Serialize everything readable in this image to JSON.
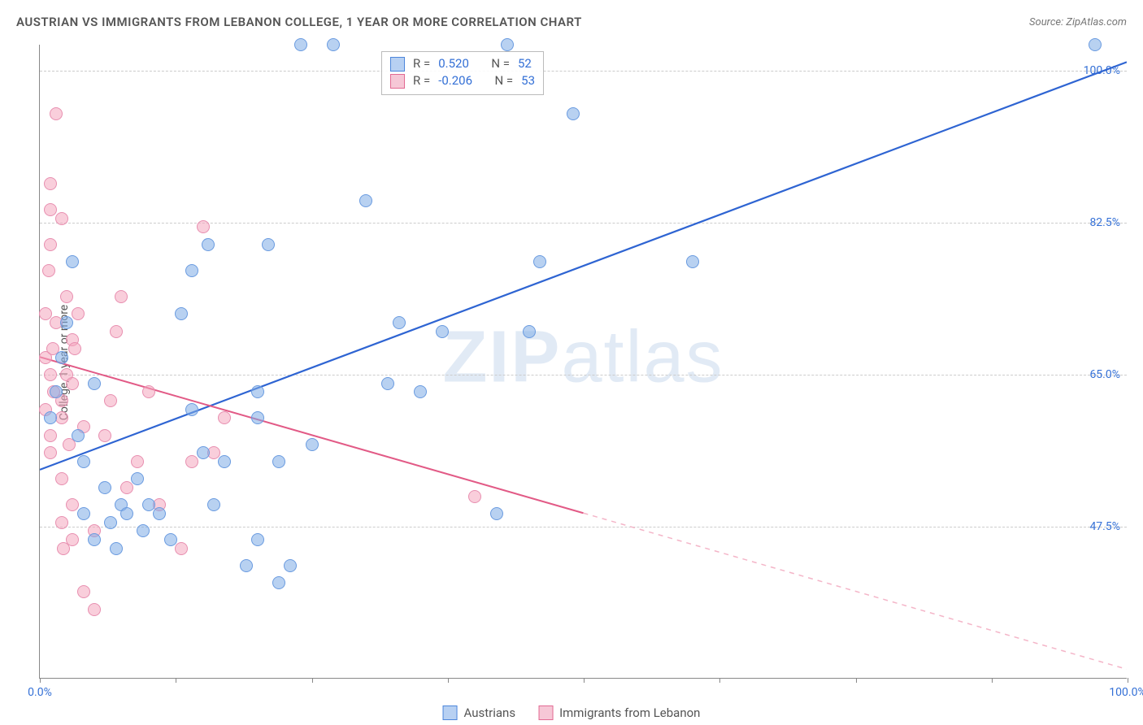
{
  "title": "AUSTRIAN VS IMMIGRANTS FROM LEBANON COLLEGE, 1 YEAR OR MORE CORRELATION CHART",
  "source": "Source: ZipAtlas.com",
  "y_axis_label": "College, 1 year or more",
  "watermark": "ZIPatlas",
  "chart": {
    "type": "scatter",
    "xlim": [
      0,
      100
    ],
    "ylim": [
      30,
      103
    ],
    "y_ticks": [
      {
        "v": 47.5,
        "label": "47.5%"
      },
      {
        "v": 65.0,
        "label": "65.0%"
      },
      {
        "v": 82.5,
        "label": "82.5%"
      },
      {
        "v": 100.0,
        "label": "100.0%"
      }
    ],
    "x_tick_positions": [
      0,
      12.5,
      25,
      37.5,
      50,
      62.5,
      75,
      87.5,
      100
    ],
    "x_tick_labels": [
      {
        "v": 0,
        "label": "0.0%"
      },
      {
        "v": 100,
        "label": "100.0%"
      }
    ],
    "background_color": "#ffffff",
    "grid_color": "#cccccc"
  },
  "series": {
    "austrians": {
      "label": "Austrians",
      "color_fill": "rgba(126,171,229,0.55)",
      "color_stroke": "#6a9be0",
      "swatch_fill": "#b7d0f2",
      "swatch_stroke": "#4d86db",
      "r_value": "0.520",
      "n_value": "52",
      "n_color": "#3470d6",
      "trend": {
        "x1": 0,
        "y1": 54,
        "x2": 100,
        "y2": 101,
        "color": "#2e64d2",
        "width": 2.2,
        "dash": "none"
      },
      "points": [
        [
          1,
          60
        ],
        [
          1.5,
          63
        ],
        [
          2,
          67
        ],
        [
          2.5,
          71
        ],
        [
          3,
          78
        ],
        [
          3.5,
          58
        ],
        [
          4,
          55
        ],
        [
          4,
          49
        ],
        [
          5,
          46
        ],
        [
          5,
          64
        ],
        [
          6,
          52
        ],
        [
          6.5,
          48
        ],
        [
          7,
          45
        ],
        [
          7.5,
          50
        ],
        [
          8,
          49
        ],
        [
          9,
          53
        ],
        [
          9.5,
          47
        ],
        [
          10,
          50
        ],
        [
          11,
          49
        ],
        [
          12,
          46
        ],
        [
          13,
          72
        ],
        [
          14,
          61
        ],
        [
          14,
          77
        ],
        [
          15,
          56
        ],
        [
          15.5,
          80
        ],
        [
          16,
          50
        ],
        [
          17,
          55
        ],
        [
          19,
          43
        ],
        [
          20,
          46
        ],
        [
          20,
          60
        ],
        [
          20,
          63
        ],
        [
          21,
          80
        ],
        [
          22,
          55
        ],
        [
          22,
          41
        ],
        [
          23,
          43
        ],
        [
          24,
          103
        ],
        [
          25,
          57
        ],
        [
          27,
          103
        ],
        [
          30,
          85
        ],
        [
          32,
          64
        ],
        [
          33,
          71
        ],
        [
          35,
          63
        ],
        [
          37,
          70
        ],
        [
          42,
          49
        ],
        [
          43,
          103
        ],
        [
          45,
          70
        ],
        [
          46,
          78
        ],
        [
          49,
          95
        ],
        [
          60,
          78
        ],
        [
          97,
          103
        ]
      ]
    },
    "lebanon": {
      "label": "Immigrants from Lebanon",
      "color_fill": "rgba(244,165,190,0.55)",
      "color_stroke": "#e88fb0",
      "swatch_fill": "#f6c7d6",
      "swatch_stroke": "#e26a93",
      "r_value": "-0.206",
      "n_value": "53",
      "n_color": "#3470d6",
      "trend_solid": {
        "x1": 0,
        "y1": 67,
        "x2": 50,
        "y2": 49,
        "color": "#e25a86",
        "width": 2
      },
      "trend_dash": {
        "x1": 50,
        "y1": 49,
        "x2": 100,
        "y2": 31,
        "color": "#f4b5c8",
        "width": 1.5,
        "dash": "6,6"
      },
      "points": [
        [
          0.5,
          61
        ],
        [
          0.5,
          67
        ],
        [
          0.5,
          72
        ],
        [
          0.8,
          77
        ],
        [
          1,
          80
        ],
        [
          1,
          84
        ],
        [
          1,
          87
        ],
        [
          1,
          65
        ],
        [
          1,
          58
        ],
        [
          1,
          56
        ],
        [
          1.2,
          68
        ],
        [
          1.3,
          63
        ],
        [
          1.5,
          71
        ],
        [
          1.5,
          95
        ],
        [
          2,
          83
        ],
        [
          2,
          62
        ],
        [
          2,
          60
        ],
        [
          2,
          53
        ],
        [
          2,
          48
        ],
        [
          2.2,
          45
        ],
        [
          2.5,
          74
        ],
        [
          2.5,
          65
        ],
        [
          2.7,
          57
        ],
        [
          3,
          50
        ],
        [
          3,
          46
        ],
        [
          3,
          69
        ],
        [
          3,
          64
        ],
        [
          3.2,
          68
        ],
        [
          3.5,
          72
        ],
        [
          4,
          59
        ],
        [
          4,
          40
        ],
        [
          5,
          47
        ],
        [
          5,
          38
        ],
        [
          6,
          58
        ],
        [
          6.5,
          62
        ],
        [
          7,
          70
        ],
        [
          7.5,
          74
        ],
        [
          8,
          52
        ],
        [
          9,
          55
        ],
        [
          10,
          63
        ],
        [
          11,
          50
        ],
        [
          13,
          45
        ],
        [
          14,
          55
        ],
        [
          15,
          82
        ],
        [
          16,
          56
        ],
        [
          17,
          60
        ],
        [
          40,
          51
        ]
      ]
    }
  },
  "stats_legend": {
    "r_prefix": "R =",
    "n_prefix": "N ="
  }
}
